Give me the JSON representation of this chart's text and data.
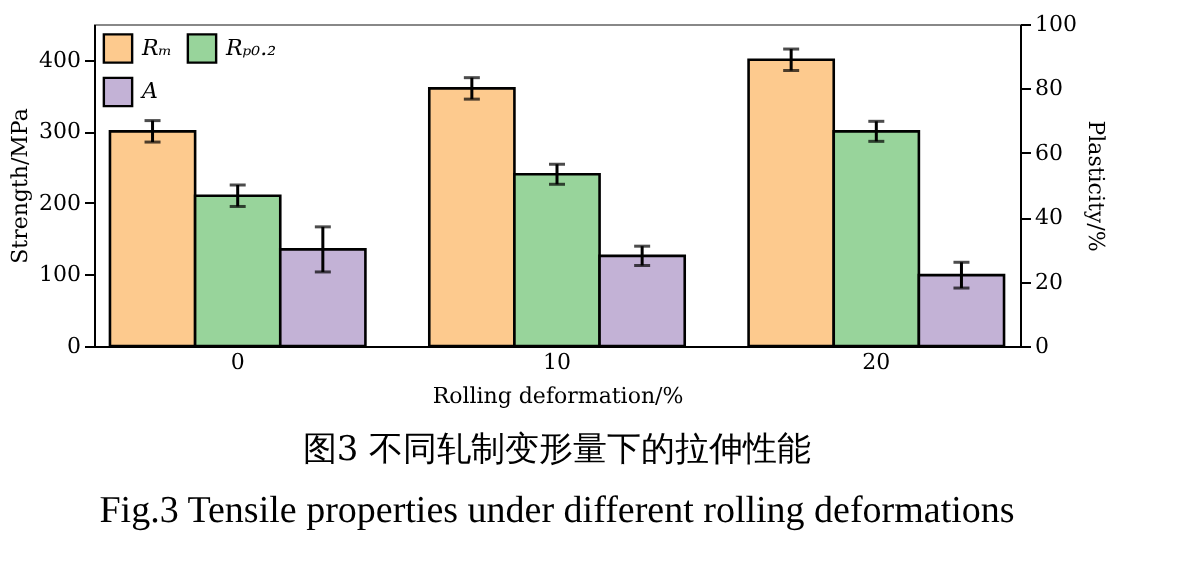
{
  "chart_data": {
    "type": "bar",
    "title": "图3 不同轧制变形量下的拉伸性能",
    "subtitle": "Fig.3 Tensile properties under different rolling deformations",
    "xlabel": "Rolling deformation/%",
    "ylabel": "Strength/MPa",
    "y2label": "Plasticity/%",
    "categories": [
      "0",
      "10",
      "20"
    ],
    "series": [
      {
        "name": "Rₘ",
        "color": "#fdca8e",
        "values": [
          300,
          360,
          400
        ],
        "errors": [
          15,
          15,
          15
        ]
      },
      {
        "name": "Rₚ₀.₂",
        "color": "#98d49b",
        "values": [
          210,
          240,
          300
        ],
        "errors": [
          15,
          14,
          14
        ]
      },
      {
        "name": "A",
        "color": "#c3b2d6",
        "values": [
          30,
          28,
          22
        ],
        "errors": [
          7,
          3,
          4
        ],
        "axis": "y2"
      }
    ],
    "ylim": [
      0,
      450
    ],
    "yticks": [
      0,
      100,
      200,
      300,
      400
    ],
    "y2lim": [
      0,
      100
    ],
    "y2ticks": [
      0,
      20,
      40,
      60,
      80,
      100
    ],
    "grid": false,
    "legend": "top left"
  }
}
